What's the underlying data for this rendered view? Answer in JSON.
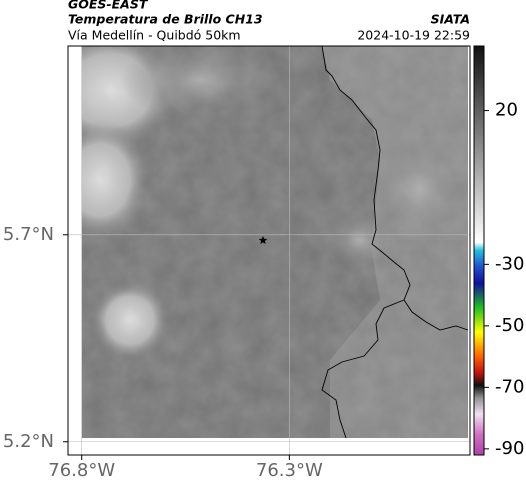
{
  "header": {
    "source": "GOES-EAST",
    "product": "Temperatura de Brillo CH13",
    "route": "Vía Medellín - Quibdó 50km",
    "agency": "SIATA",
    "datetime": "2024-10-19 22:59"
  },
  "map": {
    "xlim": [
      -76.833,
      -75.865
    ],
    "ylim": [
      5.168,
      6.156
    ],
    "xticks": [
      {
        "value": -76.8,
        "label": "76.8°W"
      },
      {
        "value": -76.3,
        "label": "76.3°W"
      }
    ],
    "yticks": [
      {
        "value": 5.2,
        "label": "5.2°N"
      },
      {
        "value": 5.7,
        "label": "5.7°N"
      }
    ],
    "grid": true
  },
  "colorbar": {
    "lim": [
      -92,
      41
    ],
    "ticks": [
      20,
      -30,
      -50,
      -70,
      -90
    ]
  }
}
